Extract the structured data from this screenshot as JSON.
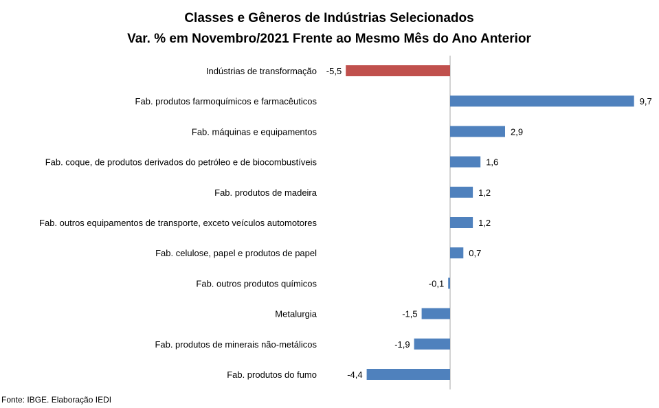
{
  "chart_data": {
    "type": "bar",
    "orientation": "horizontal",
    "title": "Classes e Gêneros de Indústrias Selecionados",
    "subtitle": "Var. % em Novembro/2021 Frente ao Mesmo Mês do Ano Anterior",
    "categories": [
      "Indústrias de transformação",
      "Fab. produtos farmoquímicos e farmacêuticos",
      "Fab. máquinas e equipamentos",
      "Fab. coque, de produtos derivados do petróleo e de biocombustíveis",
      "Fab. produtos de madeira",
      "Fab. outros equipamentos de transporte, exceto veículos automotores",
      "Fab. celulose, papel e produtos de papel",
      "Fab. outros produtos químicos",
      "Metalurgia",
      "Fab. produtos de minerais não-metálicos",
      "Fab. produtos do fumo"
    ],
    "values": [
      -5.5,
      9.7,
      2.9,
      1.6,
      1.2,
      1.2,
      0.7,
      -0.1,
      -1.5,
      -1.9,
      -4.4
    ],
    "value_labels": [
      "-5,5",
      "9,7",
      "2,9",
      "1,6",
      "1,2",
      "1,2",
      "0,7",
      "-0,1",
      "-1,5",
      "-1,9",
      "-4,4"
    ],
    "highlight_index": 0,
    "xlim": [
      -5.5,
      9.7
    ],
    "grid": false,
    "legend": "none",
    "colors": {
      "default": "#4F81BD",
      "highlight": "#C0504D",
      "axis": "#A6A6A6"
    },
    "source": "Fonte: IBGE. Elaboração IEDI"
  }
}
